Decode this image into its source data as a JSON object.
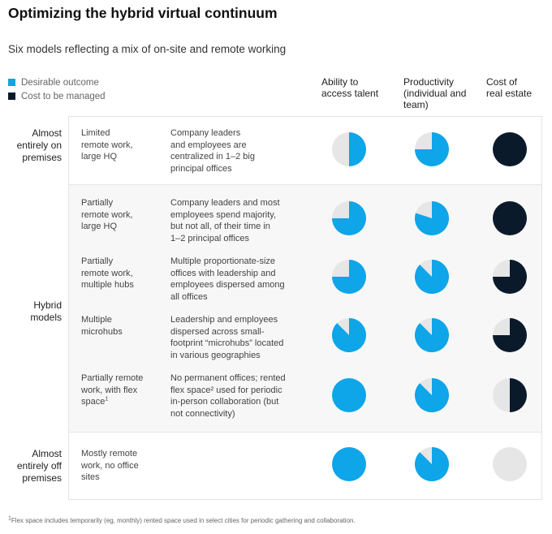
{
  "title": "Optimizing the hybrid virtual continuum",
  "subtitle": "Six models reflecting a mix of on-site and remote working",
  "legend": [
    {
      "label": "Desirable outcome",
      "color": "#0ea5e9"
    },
    {
      "label": "Cost to be managed",
      "color": "#0b1a2b"
    }
  ],
  "columns": [
    {
      "label_lines": [
        "Ability to",
        "access talent"
      ],
      "type": "desirable"
    },
    {
      "label_lines": [
        "Productivity",
        "(individual and",
        "team)"
      ],
      "type": "desirable"
    },
    {
      "label_lines": [
        "Cost of",
        "real estate"
      ],
      "type": "cost"
    }
  ],
  "colors": {
    "desirable": "#0ea5e9",
    "cost": "#0b1a2b",
    "empty": "#e6e6e6"
  },
  "groups": [
    {
      "label_lines": [
        "Almost",
        "entirely on",
        "premises"
      ]
    },
    {
      "label_lines": [
        "Hybrid",
        "models"
      ]
    },
    {
      "label_lines": [
        "Almost",
        "entirely off",
        "premises"
      ]
    }
  ],
  "rows": [
    {
      "name_lines": [
        "Limited",
        "remote work,",
        "large HQ"
      ],
      "desc_lines": [
        "Company leaders",
        "and employees are",
        "centralized in 1–2 big",
        "principal offices"
      ]
    },
    {
      "name_lines": [
        "Partially",
        "remote work,",
        "large HQ"
      ],
      "desc_lines": [
        "Company leaders and most",
        "employees spend majority,",
        "but not all, of their time in",
        "1–2 principal offices"
      ]
    },
    {
      "name_lines": [
        "Partially",
        "remote work,",
        "multiple hubs"
      ],
      "desc_lines": [
        "Multiple proportionate-size",
        "offices with leadership and",
        "employees dispersed among",
        "all offices"
      ]
    },
    {
      "name_lines": [
        "Multiple",
        "microhubs"
      ],
      "desc_lines": [
        "Leadership and employees",
        "dispersed across small-",
        "footprint “microhubs” located",
        "in various geographies"
      ]
    },
    {
      "name_lines": [
        "Partially remote",
        "work, with flex",
        "space"
      ],
      "name_sup": "1",
      "desc_lines": [
        "No permanent offices; rented",
        "flex space² used for periodic",
        "in-person collaboration (but",
        "not connectivity)"
      ]
    },
    {
      "name_lines": [
        "Mostly remote",
        "work, no office",
        "sites"
      ],
      "desc_lines": []
    }
  ],
  "chart_data": {
    "type": "table",
    "title": "Optimizing the hybrid virtual continuum",
    "subtitle": "Six models reflecting a mix of on-site and remote working",
    "value_unit": "fraction of circle filled (Harvey ball)",
    "columns": [
      "Ability to access talent",
      "Productivity (individual and team)",
      "Cost of real estate"
    ],
    "series_types": [
      "Desirable outcome",
      "Desirable outcome",
      "Cost to be managed"
    ],
    "rows": [
      {
        "group": "Almost entirely on premises",
        "model": "Limited remote work, large HQ",
        "values": [
          0.5,
          0.75,
          1.0
        ]
      },
      {
        "group": "Hybrid models",
        "model": "Partially remote work, large HQ",
        "values": [
          0.75,
          0.8,
          1.0
        ]
      },
      {
        "group": "Hybrid models",
        "model": "Partially remote work, multiple hubs",
        "values": [
          0.75,
          0.875,
          0.75
        ]
      },
      {
        "group": "Hybrid models",
        "model": "Multiple microhubs",
        "values": [
          0.875,
          0.875,
          0.75
        ]
      },
      {
        "group": "Hybrid models",
        "model": "Partially remote work, with flex space",
        "values": [
          1.0,
          0.875,
          0.5
        ]
      },
      {
        "group": "Almost entirely off premises",
        "model": "Mostly remote work, no office sites",
        "values": [
          1.0,
          0.875,
          0.0
        ]
      }
    ]
  },
  "footnote": {
    "sup": "1",
    "text": "Flex space includes temporarily (eg, monthly) rented space used in select cities for periodic gathering and collaboration."
  }
}
